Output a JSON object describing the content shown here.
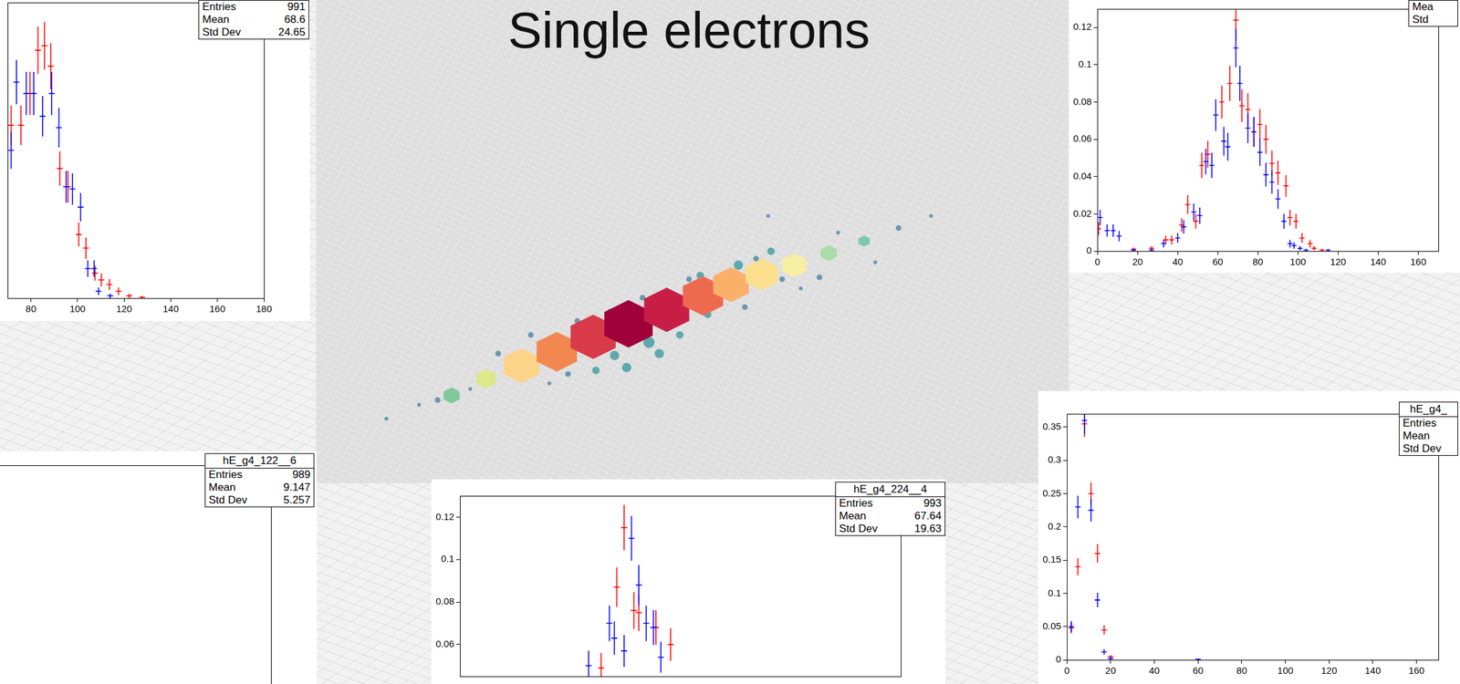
{
  "title": "Single electrons",
  "chart_data": [
    {
      "type": "scatter",
      "grid": false,
      "tick_labels": "x",
      "stats_box": {
        "rows": [
          {
            "label": "Entries",
            "value": 991
          },
          {
            "label": "Mean",
            "value": 68.6
          },
          {
            "label": "Std Dev",
            "value": 24.65
          }
        ]
      },
      "xlim": [
        70,
        180
      ],
      "xticks": [
        80,
        100,
        120,
        140,
        160,
        180
      ],
      "ylim": [
        0,
        0.13
      ],
      "x_error": 1.25,
      "series": [
        {
          "color": "#ff0000",
          "x": [
            71.5,
            75.7,
            79.6,
            83,
            85.8,
            88.5,
            92.4,
            95.9,
            100.5,
            103.6,
            107.5,
            110.2,
            113.7,
            117.6,
            122.2,
            127.7
          ],
          "values": [
            0.076,
            0.076,
            0.09,
            0.109,
            0.111,
            0.102,
            0.057,
            0.049,
            0.028,
            0.022,
            0.011,
            0.008,
            0.006,
            0.003,
            0.001,
            0.0004
          ],
          "errors": [
            0.0087,
            0.0087,
            0.0095,
            0.0104,
            0.0105,
            0.0101,
            0.0075,
            0.007,
            0.0053,
            0.0047,
            0.0033,
            0.0028,
            0.0024,
            0.0017,
            0.001,
            0.0006
          ]
        },
        {
          "color": "#0000ff",
          "x": [
            71.5,
            73.8,
            78,
            81.2,
            85,
            88.9,
            92,
            95.1,
            97.8,
            101.3,
            104.4,
            107.1,
            109,
            114
          ],
          "values": [
            0.065,
            0.095,
            0.09,
            0.09,
            0.08,
            0.09,
            0.075,
            0.049,
            0.048,
            0.04,
            0.013,
            0.013,
            0.003,
            0.001
          ],
          "errors": [
            0.0081,
            0.0097,
            0.0095,
            0.0095,
            0.0089,
            0.0095,
            0.0087,
            0.007,
            0.0069,
            0.0063,
            0.0036,
            0.0036,
            0.0017,
            0.001
          ]
        }
      ]
    },
    {
      "type": "scatter",
      "grid": false,
      "tick_labels": false,
      "stats_box": {
        "title": "hE_g4_122__6",
        "rows": [
          {
            "label": "Entries",
            "value": 989
          },
          {
            "label": "Mean",
            "value": 9.147
          },
          {
            "label": "Std Dev",
            "value": 5.257
          }
        ]
      },
      "series": []
    },
    {
      "type": "scatter",
      "grid": false,
      "tick_labels": "y",
      "stats_box": {
        "title": "hE_g4_224__4",
        "rows": [
          {
            "label": "Entries",
            "value": 993
          },
          {
            "label": "Mean",
            "value": 67.64
          },
          {
            "label": "Std Dev",
            "value": 19.63
          }
        ]
      },
      "xlim": [
        0,
        180
      ],
      "ylim": [
        0.045,
        0.13
      ],
      "yticks": [
        0.06,
        0.08,
        0.1,
        0.12
      ],
      "x_error": 1.25,
      "series": [
        {
          "color": "#ff0000",
          "x": [
            57.6,
            64,
            67,
            71,
            73,
            80,
            86
          ],
          "values": [
            0.049,
            0.087,
            0.115,
            0.076,
            0.075,
            0.068,
            0.06
          ],
          "errors": [
            0.007,
            0.0093,
            0.0107,
            0.0087,
            0.0087,
            0.0082,
            0.0077
          ]
        },
        {
          "color": "#0000ff",
          "x": [
            52.5,
            61,
            63,
            67,
            70,
            73,
            76,
            79,
            82
          ],
          "values": [
            0.05,
            0.07,
            0.063,
            0.057,
            0.11,
            0.088,
            0.07,
            0.068,
            0.054
          ],
          "errors": [
            0.0071,
            0.0084,
            0.0079,
            0.0075,
            0.0105,
            0.0094,
            0.0084,
            0.0082,
            0.0073
          ]
        }
      ]
    },
    {
      "type": "scatter",
      "grid": false,
      "stats_box": {
        "rows": [
          {
            "label": "Mea"
          },
          {
            "label": "Std"
          }
        ]
      },
      "xlim": [
        0,
        170
      ],
      "xticks": [
        0,
        20,
        40,
        60,
        80,
        100,
        120,
        140,
        160
      ],
      "ylim": [
        0,
        0.13
      ],
      "yticks": [
        0,
        0.02,
        0.04,
        0.06,
        0.08,
        0.1,
        0.12
      ],
      "x_error": 1.25,
      "series": [
        {
          "color": "#ff0000",
          "x": [
            0.5,
            18,
            27,
            34,
            37,
            42,
            45,
            49,
            52,
            55,
            62,
            66,
            69,
            72,
            75,
            78,
            81,
            84,
            87,
            90,
            94,
            96,
            99,
            102,
            106,
            108,
            112
          ],
          "values": [
            0.012,
            0.001,
            0.0015,
            0.006,
            0.006,
            0.014,
            0.025,
            0.016,
            0.046,
            0.052,
            0.08,
            0.09,
            0.124,
            0.078,
            0.076,
            0.064,
            0.068,
            0.06,
            0.047,
            0.042,
            0.035,
            0.018,
            0.016,
            0.007,
            0.004,
            0.0015,
            0.0005
          ],
          "errors": [
            0.0035,
            0.001,
            0.0012,
            0.0024,
            0.0024,
            0.0037,
            0.005,
            0.004,
            0.0068,
            0.0072,
            0.0089,
            0.0095,
            0.0111,
            0.0088,
            0.0087,
            0.008,
            0.0082,
            0.0077,
            0.0069,
            0.0065,
            0.0059,
            0.0042,
            0.004,
            0.0026,
            0.002,
            0.0012,
            0.0007
          ]
        },
        {
          "color": "#0000ff",
          "x": [
            1.3,
            4.8,
            7.8,
            10.8,
            18,
            27,
            33,
            40,
            43,
            48,
            51,
            54,
            57,
            59,
            63,
            65,
            69,
            71,
            75,
            78,
            81,
            84,
            87,
            90,
            93,
            96,
            98,
            101,
            104,
            115
          ],
          "values": [
            0.018,
            0.011,
            0.011,
            0.008,
            0.0005,
            0.0005,
            0.004,
            0.007,
            0.013,
            0.021,
            0.019,
            0.048,
            0.046,
            0.073,
            0.059,
            0.056,
            0.109,
            0.09,
            0.066,
            0.064,
            0.053,
            0.041,
            0.037,
            0.028,
            0.016,
            0.004,
            0.003,
            0.0015,
            0.0005,
            0.0005
          ],
          "errors": [
            0.0042,
            0.0033,
            0.0033,
            0.0028,
            0.0007,
            0.0007,
            0.002,
            0.0026,
            0.0036,
            0.0046,
            0.0044,
            0.0069,
            0.0068,
            0.0085,
            0.0077,
            0.0075,
            0.0104,
            0.0095,
            0.0081,
            0.008,
            0.0073,
            0.0064,
            0.0061,
            0.0053,
            0.004,
            0.002,
            0.0017,
            0.0012,
            0.0007,
            0.0007
          ]
        }
      ]
    },
    {
      "type": "scatter",
      "grid": false,
      "stats_box": {
        "title": "hE_g4_",
        "rows": [
          {
            "label": "Entries"
          },
          {
            "label": "Mean"
          },
          {
            "label": "Std Dev"
          }
        ]
      },
      "xlim": [
        0,
        170
      ],
      "xticks": [
        0,
        20,
        40,
        60,
        80,
        100,
        120,
        140,
        160
      ],
      "ylim": [
        0,
        0.37
      ],
      "yticks": [
        0,
        0.05,
        0.1,
        0.15,
        0.2,
        0.25,
        0.3,
        0.35
      ],
      "x_error": 1.25,
      "series": [
        {
          "color": "#ff0000",
          "x": [
            2,
            5,
            8,
            11,
            14,
            17,
            20
          ],
          "values": [
            0.048,
            0.14,
            0.355,
            0.25,
            0.16,
            0.045,
            0.005
          ],
          "errors": [
            0.008,
            0.013,
            0.02,
            0.017,
            0.014,
            0.007,
            0.002
          ]
        },
        {
          "color": "#0000ff",
          "x": [
            2,
            5,
            8,
            11,
            14,
            17,
            20,
            60
          ],
          "values": [
            0.05,
            0.23,
            0.36,
            0.225,
            0.09,
            0.012,
            0.002,
            0.001
          ],
          "errors": [
            0.008,
            0.017,
            0.02,
            0.017,
            0.011,
            0.004,
            0.002,
            0.001
          ]
        }
      ]
    }
  ]
}
